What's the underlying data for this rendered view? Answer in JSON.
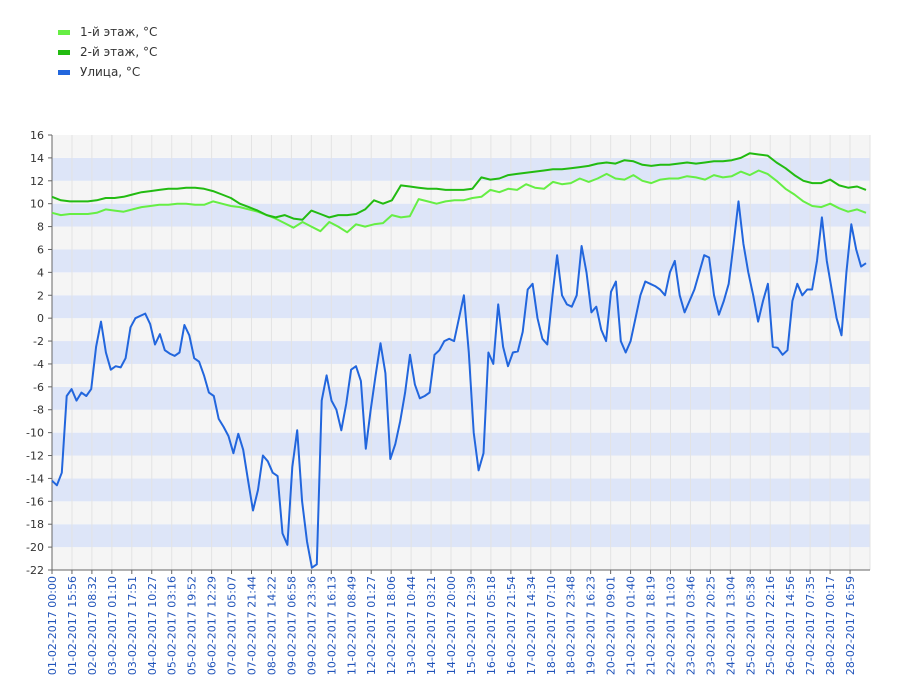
{
  "chart_data": {
    "type": "line",
    "ylim": [
      -22,
      16
    ],
    "yticks": [
      16,
      14,
      12,
      10,
      8,
      6,
      4,
      2,
      0,
      -2,
      -4,
      -6,
      -8,
      -10,
      -12,
      -14,
      -16,
      -18,
      -20,
      -22
    ],
    "grid": true,
    "legend_position": "top-left",
    "x_tick_labels": [
      "01-02-2017 00:00",
      "01-02-2017 15:56",
      "02-02-2017 08:32",
      "03-02-2017 01:10",
      "03-02-2017 17:51",
      "04-02-2017 10:27",
      "05-02-2017 03:16",
      "05-02-2017 19:52",
      "06-02-2017 12:29",
      "07-02-2017 05:07",
      "07-02-2017 21:44",
      "08-02-2017 14:22",
      "09-02-2017 06:58",
      "09-02-2017 23:36",
      "10-02-2017 16:13",
      "11-02-2017 08:49",
      "12-02-2017 01:27",
      "12-02-2017 18:06",
      "13-02-2017 10:44",
      "14-02-2017 03:21",
      "14-02-2017 20:00",
      "15-02-2017 12:39",
      "16-02-2017 05:18",
      "16-02-2017 21:54",
      "17-02-2017 14:34",
      "18-02-2017 07:10",
      "18-02-2017 23:48",
      "19-02-2017 16:23",
      "20-02-2017 09:01",
      "21-02-2017 01:40",
      "21-02-2017 18:19",
      "22-02-2017 11:03",
      "23-02-2017 03:46",
      "23-02-2017 20:25",
      "24-02-2017 13:04",
      "25-02-2017 05:38",
      "25-02-2017 22:16",
      "26-02-2017 14:56",
      "27-02-2017 07:35",
      "28-02-2017 00:17",
      "28-02-2017 16:59"
    ],
    "series": [
      {
        "name": "1-й этаж, °С",
        "color": "#66ee44",
        "values": [
          9.2,
          9.0,
          9.1,
          9.1,
          9.1,
          9.2,
          9.5,
          9.4,
          9.3,
          9.5,
          9.7,
          9.8,
          9.9,
          9.9,
          10.0,
          10.0,
          9.9,
          9.9,
          10.2,
          10.0,
          9.8,
          9.7,
          9.5,
          9.3,
          9.0,
          8.7,
          8.3,
          7.9,
          8.4,
          8.0,
          7.6,
          8.4,
          8.0,
          7.5,
          8.2,
          8.0,
          8.2,
          8.3,
          9.0,
          8.8,
          8.9,
          10.4,
          10.2,
          10.0,
          10.2,
          10.3,
          10.3,
          10.5,
          10.6,
          11.2,
          11.0,
          11.3,
          11.2,
          11.7,
          11.4,
          11.3,
          11.9,
          11.7,
          11.8,
          12.2,
          11.9,
          12.2,
          12.6,
          12.2,
          12.1,
          12.5,
          12.0,
          11.8,
          12.1,
          12.2,
          12.2,
          12.4,
          12.3,
          12.1,
          12.5,
          12.3,
          12.4,
          12.8,
          12.5,
          12.9,
          12.6,
          12.0,
          11.3,
          10.8,
          10.2,
          9.8,
          9.7,
          10.0,
          9.6,
          9.3,
          9.5,
          9.2
        ]
      },
      {
        "name": "2-й этаж, °С",
        "color": "#22bb11",
        "values": [
          10.6,
          10.3,
          10.2,
          10.2,
          10.2,
          10.3,
          10.5,
          10.5,
          10.6,
          10.8,
          11.0,
          11.1,
          11.2,
          11.3,
          11.3,
          11.4,
          11.4,
          11.3,
          11.1,
          10.8,
          10.5,
          10.0,
          9.7,
          9.4,
          9.0,
          8.8,
          9.0,
          8.7,
          8.6,
          9.4,
          9.1,
          8.8,
          9.0,
          9.0,
          9.1,
          9.5,
          10.3,
          10.0,
          10.3,
          11.6,
          11.5,
          11.4,
          11.3,
          11.3,
          11.2,
          11.2,
          11.2,
          11.3,
          12.3,
          12.1,
          12.2,
          12.5,
          12.6,
          12.7,
          12.8,
          12.9,
          13.0,
          13.0,
          13.1,
          13.2,
          13.3,
          13.5,
          13.6,
          13.5,
          13.8,
          13.7,
          13.4,
          13.3,
          13.4,
          13.4,
          13.5,
          13.6,
          13.5,
          13.6,
          13.7,
          13.7,
          13.8,
          14.0,
          14.4,
          14.3,
          14.2,
          13.6,
          13.1,
          12.5,
          12.0,
          11.8,
          11.8,
          12.1,
          11.6,
          11.4,
          11.5,
          11.2
        ]
      },
      {
        "name": "Улица, °С",
        "color": "#2266dd",
        "values": [
          -14.2,
          -14.6,
          -13.5,
          -6.8,
          -6.2,
          -7.2,
          -6.5,
          -6.8,
          -6.2,
          -2.5,
          -0.3,
          -3.0,
          -4.5,
          -4.2,
          -4.3,
          -3.5,
          -0.8,
          0.0,
          0.2,
          0.4,
          -0.5,
          -2.3,
          -1.4,
          -2.8,
          -3.1,
          -3.3,
          -3.0,
          -0.6,
          -1.5,
          -3.5,
          -3.8,
          -5.0,
          -6.5,
          -6.8,
          -8.8,
          -9.5,
          -10.3,
          -11.8,
          -10.1,
          -11.5,
          -14.2,
          -16.8,
          -15.0,
          -12.0,
          -12.5,
          -13.5,
          -13.8,
          -18.8,
          -19.8,
          -13.0,
          -9.8,
          -16.0,
          -19.5,
          -21.8,
          -21.5,
          -7.2,
          -5.0,
          -7.2,
          -8.0,
          -9.8,
          -7.5,
          -4.5,
          -4.2,
          -5.5,
          -11.4,
          -8.0,
          -5.0,
          -2.2,
          -4.8,
          -12.3,
          -11.0,
          -9.0,
          -6.5,
          -3.2,
          -5.8,
          -7.0,
          -6.8,
          -6.5,
          -3.2,
          -2.8,
          -2.0,
          -1.8,
          -2.0,
          0.0,
          2.0,
          -3.0,
          -10.0,
          -13.3,
          -11.8,
          -3.0,
          -4.0,
          1.2,
          -2.5,
          -4.2,
          -3.0,
          -2.9,
          -1.2,
          2.5,
          3.0,
          0.0,
          -1.8,
          -2.3,
          1.8,
          5.5,
          2.0,
          1.2,
          1.0,
          2.0,
          6.3,
          4.0,
          0.5,
          1.0,
          -1.0,
          -2.0,
          2.3,
          3.2,
          -2.0,
          -3.0,
          -2.0,
          0.0,
          2.0,
          3.2,
          3.0,
          2.8,
          2.5,
          2.0,
          4.0,
          5.0,
          2.0,
          0.5,
          1.5,
          2.5,
          4.0,
          5.5,
          5.3,
          2.0,
          0.3,
          1.5,
          3.0,
          6.5,
          10.2,
          6.5,
          4.0,
          2.0,
          -0.3,
          1.5,
          3.0,
          -2.5,
          -2.6,
          -3.2,
          -2.8,
          1.5,
          3.0,
          2.0,
          2.5,
          2.5,
          5.0,
          8.8,
          5.0,
          2.5,
          0.0,
          -1.5,
          4.0,
          8.2,
          6.0,
          4.5,
          4.8
        ]
      }
    ]
  }
}
